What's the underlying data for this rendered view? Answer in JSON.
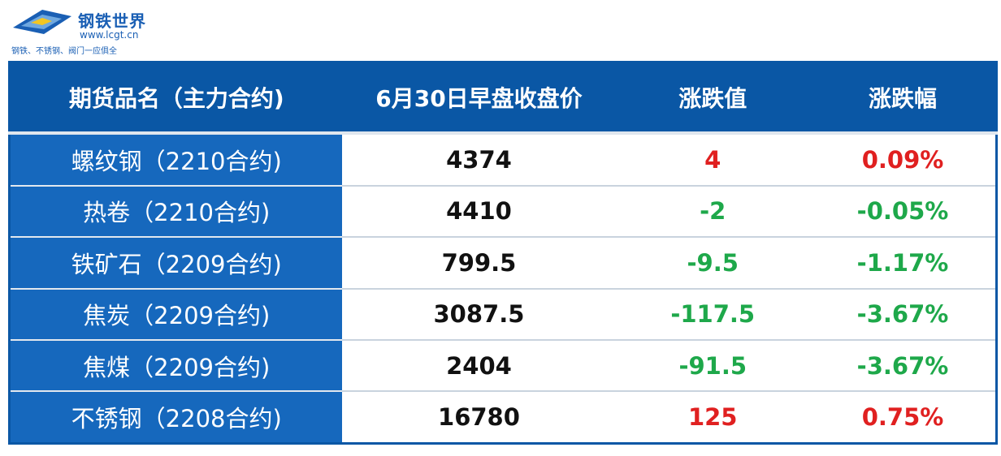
{
  "header": {
    "brand": "钢铁世界",
    "url": "www.lcgt.cn",
    "slogan": "钢铁、不锈钢、阀门一应俱全"
  },
  "table": {
    "columns": [
      "期货品名（主力合约)",
      "6月30日早盘收盘价",
      "涨跌值",
      "涨跌幅"
    ],
    "rows": [
      [
        "螺纹钢（2210合约)",
        "4374",
        "4",
        "0.09%"
      ],
      [
        "热卷（2210合约)",
        "4410",
        "-2",
        "-0.05%"
      ],
      [
        "铁矿石（2209合约)",
        "799.5",
        "-9.5",
        "-1.17%"
      ],
      [
        "焦炭（2209合约)",
        "3087.5",
        "-117.5",
        "-3.67%"
      ],
      [
        "焦煤（2209合约)",
        "2404",
        "-91.5",
        "-3.67%"
      ],
      [
        "不锈钢（2208合约)",
        "16780",
        "125",
        "0.75%"
      ]
    ]
  }
}
